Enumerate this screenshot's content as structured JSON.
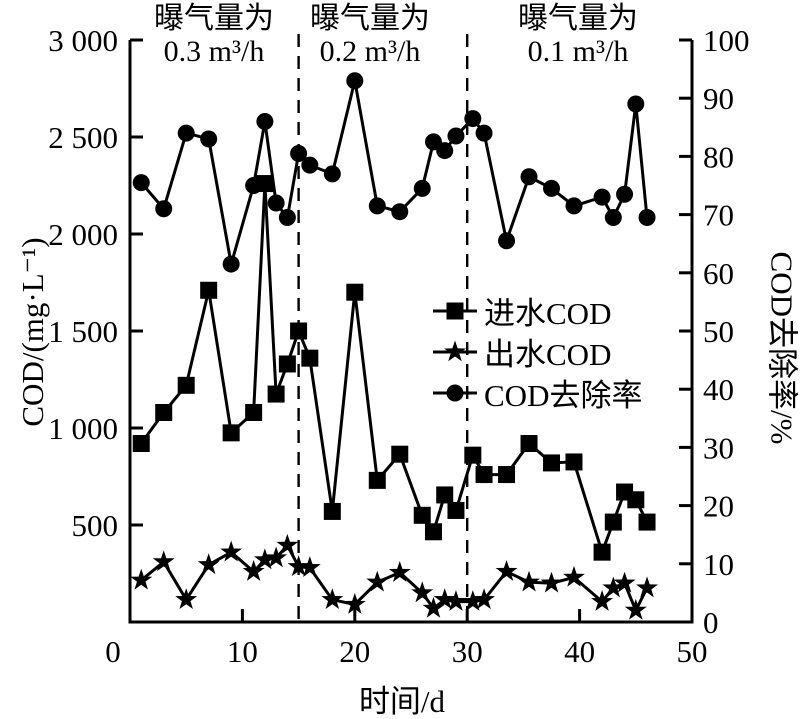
{
  "chart_data": {
    "type": "line",
    "xlabel": "时间/d",
    "ylabel_left": "COD/(mg·L⁻¹)",
    "ylabel_right": "COD去除率/%",
    "xlim": [
      0,
      50
    ],
    "ylim_left": [
      0,
      3000
    ],
    "ylim_right": [
      0,
      100
    ],
    "grid": false,
    "legend_position": "inside-right-middle",
    "x_ticks": {
      "values": [
        0,
        10,
        20,
        30,
        40,
        50
      ],
      "labels": [
        "0",
        "10",
        "20",
        "30",
        "40",
        "50"
      ]
    },
    "y_ticks_left": {
      "values": [
        0,
        500,
        1000,
        1500,
        2000,
        2500,
        3000
      ],
      "labels": [
        "",
        "500",
        "1 000",
        "1 500",
        "2 000",
        "2 500",
        "3 000"
      ]
    },
    "y_ticks_right": {
      "values": [
        0,
        10,
        20,
        30,
        40,
        50,
        60,
        70,
        80,
        90,
        100
      ],
      "labels": [
        "0",
        "10",
        "20",
        "30",
        "40",
        "50",
        "60",
        "70",
        "80",
        "90",
        "100"
      ]
    },
    "phase_dividers": [
      15,
      30
    ],
    "phases": [
      {
        "line1": "曝气量为",
        "line2": "0.3 m³/h"
      },
      {
        "line1": "曝气量为",
        "line2": "0.2 m³/h"
      },
      {
        "line1": "曝气量为",
        "line2": "0.1 m³/h"
      }
    ],
    "x": [
      1,
      3,
      5,
      7,
      9,
      11,
      12,
      13,
      14,
      15,
      16,
      18,
      20,
      22,
      24,
      26,
      27,
      28,
      29,
      30.5,
      31.5,
      33.5,
      35.5,
      37.5,
      39.5,
      42,
      43,
      44,
      45,
      46
    ],
    "series": [
      {
        "name": "进水COD",
        "key": "influent-cod",
        "marker": "square",
        "axis": "left",
        "values": [
          920,
          1080,
          1220,
          1710,
          975,
          1080,
          2260,
          1175,
          1330,
          1500,
          1360,
          570,
          1700,
          730,
          865,
          550,
          465,
          655,
          575,
          860,
          760,
          760,
          920,
          820,
          825,
          360,
          515,
          670,
          630,
          515
        ]
      },
      {
        "name": "出水COD",
        "key": "effluent-cod",
        "marker": "star",
        "axis": "left",
        "values": [
          215,
          310,
          115,
          295,
          360,
          260,
          320,
          330,
          395,
          285,
          280,
          115,
          90,
          205,
          255,
          150,
          70,
          115,
          105,
          105,
          115,
          260,
          205,
          200,
          230,
          105,
          175,
          200,
          60,
          175
        ]
      },
      {
        "name": "COD去除率",
        "key": "removal-rate",
        "marker": "circle",
        "axis": "right",
        "values": [
          75.5,
          71,
          84,
          83,
          61.5,
          75,
          86,
          72,
          69.5,
          80.5,
          78.5,
          77,
          93,
          71.5,
          70.5,
          74.5,
          82.5,
          81,
          83.5,
          86.5,
          84,
          65.5,
          76.5,
          74.5,
          71.5,
          73,
          69.5,
          73.5,
          89,
          69.5
        ]
      }
    ],
    "colors": {
      "foreground": "#000000",
      "background": "#ffffff"
    }
  }
}
